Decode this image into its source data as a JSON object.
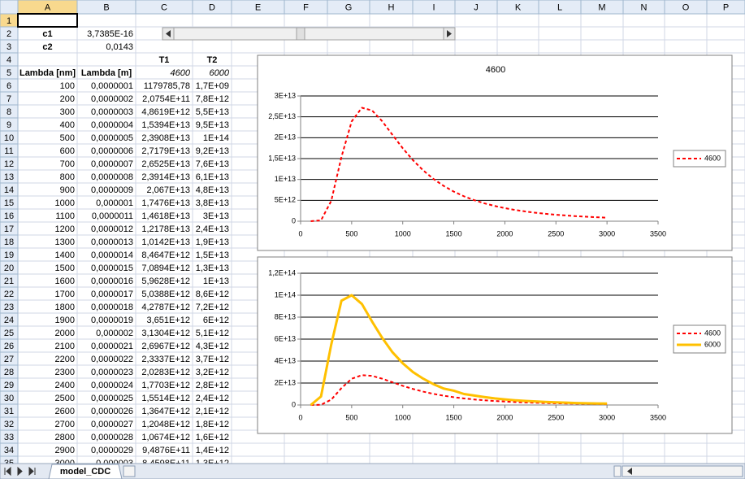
{
  "sheet": {
    "columns": [
      "A",
      "B",
      "C",
      "D",
      "E",
      "F",
      "G",
      "H",
      "I",
      "J",
      "K",
      "L",
      "M",
      "N",
      "O",
      "P"
    ],
    "row_numbers": [
      1,
      2,
      3,
      4,
      5,
      6,
      7,
      8,
      9,
      10,
      11,
      12,
      13,
      14,
      15,
      16,
      17,
      18,
      19,
      20,
      21,
      22,
      23,
      24,
      25,
      26,
      27,
      28,
      29,
      30,
      31,
      32,
      33,
      34,
      35
    ],
    "rows": [
      [
        null,
        null,
        null,
        null
      ],
      [
        "c1",
        "3,7385E-16",
        null,
        null
      ],
      [
        "c2",
        "0,0143",
        null,
        null
      ],
      [
        null,
        null,
        "T1",
        "T2"
      ],
      [
        "Lambda [nm]",
        "Lambda [m]",
        "4600",
        "6000"
      ],
      [
        100,
        "0,0000001",
        "1179785,78",
        "1,7E+09"
      ],
      [
        200,
        "0,0000002",
        "2,0754E+11",
        "7,8E+12"
      ],
      [
        300,
        "0,0000003",
        "4,8619E+12",
        "5,5E+13"
      ],
      [
        400,
        "0,0000004",
        "1,5394E+13",
        "9,5E+13"
      ],
      [
        500,
        "0,0000005",
        "2,3908E+13",
        "1E+14"
      ],
      [
        600,
        "0,0000006",
        "2,7179E+13",
        "9,2E+13"
      ],
      [
        700,
        "0,0000007",
        "2,6525E+13",
        "7,6E+13"
      ],
      [
        800,
        "0,0000008",
        "2,3914E+13",
        "6,1E+13"
      ],
      [
        900,
        "0,0000009",
        "2,067E+13",
        "4,8E+13"
      ],
      [
        1000,
        "0,000001",
        "1,7476E+13",
        "3,8E+13"
      ],
      [
        1100,
        "0,0000011",
        "1,4618E+13",
        "3E+13"
      ],
      [
        1200,
        "0,0000012",
        "1,2178E+13",
        "2,4E+13"
      ],
      [
        1300,
        "0,0000013",
        "1,0142E+13",
        "1,9E+13"
      ],
      [
        1400,
        "0,0000014",
        "8,4647E+12",
        "1,5E+13"
      ],
      [
        1500,
        "0,0000015",
        "7,0894E+12",
        "1,3E+13"
      ],
      [
        1600,
        "0,0000016",
        "5,9628E+12",
        "1E+13"
      ],
      [
        1700,
        "0,0000017",
        "5,0388E+12",
        "8,6E+12"
      ],
      [
        1800,
        "0,0000018",
        "4,2787E+12",
        "7,2E+12"
      ],
      [
        1900,
        "0,0000019",
        "3,651E+12",
        "6E+12"
      ],
      [
        2000,
        "0,000002",
        "3,1304E+12",
        "5,1E+12"
      ],
      [
        2100,
        "0,0000021",
        "2,6967E+12",
        "4,3E+12"
      ],
      [
        2200,
        "0,0000022",
        "2,3337E+12",
        "3,7E+12"
      ],
      [
        2300,
        "0,0000023",
        "2,0283E+12",
        "3,2E+12"
      ],
      [
        2400,
        "0,0000024",
        "1,7703E+12",
        "2,8E+12"
      ],
      [
        2500,
        "0,0000025",
        "1,5514E+12",
        "2,4E+12"
      ],
      [
        2600,
        "0,0000026",
        "1,3647E+12",
        "2,1E+12"
      ],
      [
        2700,
        "0,0000027",
        "1,2048E+12",
        "1,8E+12"
      ],
      [
        2800,
        "0,0000028",
        "1,0674E+12",
        "1,6E+12"
      ],
      [
        2900,
        "0,0000029",
        "9,4876E+11",
        "1,4E+12"
      ],
      [
        3000,
        "0,000003",
        "8,4598E+11",
        "1,3E+12"
      ]
    ],
    "tab": "model_CDC"
  },
  "chart_data": [
    {
      "type": "line",
      "title": "4600",
      "x": [
        100,
        200,
        300,
        400,
        500,
        600,
        700,
        800,
        900,
        1000,
        1100,
        1200,
        1300,
        1400,
        1500,
        1600,
        1700,
        1800,
        1900,
        2000,
        2100,
        2200,
        2300,
        2400,
        2500,
        2600,
        2700,
        2800,
        2900,
        3000
      ],
      "series": [
        {
          "name": "4600",
          "color": "#ff0000",
          "dashed": true,
          "values": [
            1179785.78,
            207540000000.0,
            4861900000000.0,
            15394000000000.0,
            23908000000000.0,
            27179000000000.0,
            26525000000000.0,
            23914000000000.0,
            20670000000000.0,
            17476000000000.0,
            14618000000000.0,
            12178000000000.0,
            10142000000000.0,
            8464700000000.0,
            7089400000000.0,
            5962800000000.0,
            5038800000000.0,
            4278700000000.0,
            3651000000000.0,
            3130400000000.0,
            2696700000000.0,
            2333700000000.0,
            2028300000000.0,
            1770300000000.0,
            1551400000000.0,
            1364700000000.0,
            1204800000000.0,
            1067400000000.0,
            948760000000.0,
            845980000000.0
          ]
        }
      ],
      "xlim": [
        0,
        3500
      ],
      "xticks": [
        0,
        500,
        1000,
        1500,
        2000,
        2500,
        3000,
        3500
      ],
      "ylim": [
        0,
        30000000000000.0
      ],
      "yticks": [
        0,
        {
          "value": 5000000000000.0,
          "label": "5E+12"
        },
        {
          "value": 10000000000000.0,
          "label": "1E+13"
        },
        {
          "value": 15000000000000.0,
          "label": "1,5E+13"
        },
        {
          "value": 20000000000000.0,
          "label": "2E+13"
        },
        {
          "value": 25000000000000.0,
          "label": "2,5E+13"
        },
        {
          "value": 30000000000000.0,
          "label": "3E+13"
        }
      ],
      "grid": true,
      "legend": "right"
    },
    {
      "type": "line",
      "x": [
        100,
        200,
        300,
        400,
        500,
        600,
        700,
        800,
        900,
        1000,
        1100,
        1200,
        1300,
        1400,
        1500,
        1600,
        1700,
        1800,
        1900,
        2000,
        2100,
        2200,
        2300,
        2400,
        2500,
        2600,
        2700,
        2800,
        2900,
        3000
      ],
      "series": [
        {
          "name": "4600",
          "color": "#ff0000",
          "dashed": true,
          "values": [
            1179785.78,
            207540000000.0,
            4861900000000.0,
            15394000000000.0,
            23908000000000.0,
            27179000000000.0,
            26525000000000.0,
            23914000000000.0,
            20670000000000.0,
            17476000000000.0,
            14618000000000.0,
            12178000000000.0,
            10142000000000.0,
            8464700000000.0,
            7089400000000.0,
            5962800000000.0,
            5038800000000.0,
            4278700000000.0,
            3651000000000.0,
            3130400000000.0,
            2696700000000.0,
            2333700000000.0,
            2028300000000.0,
            1770300000000.0,
            1551400000000.0,
            1364700000000.0,
            1204800000000.0,
            1067400000000.0,
            948760000000.0,
            845980000000.0
          ]
        },
        {
          "name": "6000",
          "color": "#ffc000",
          "dashed": false,
          "values": [
            1700000000.0,
            7800000000000.0,
            55000000000000.0,
            95000000000000.0,
            100000000000000.0,
            92000000000000.0,
            76000000000000.0,
            61000000000000.0,
            48000000000000.0,
            38000000000000.0,
            30000000000000.0,
            24000000000000.0,
            19000000000000.0,
            15000000000000.0,
            13000000000000.0,
            10000000000000.0,
            8600000000000.0,
            7200000000000.0,
            6000000000000.0,
            5100000000000.0,
            4300000000000.0,
            3700000000000.0,
            3200000000000.0,
            2800000000000.0,
            2400000000000.0,
            2100000000000.0,
            1800000000000.0,
            1600000000000.0,
            1400000000000.0,
            1300000000000.0
          ]
        }
      ],
      "xlim": [
        0,
        3500
      ],
      "xticks": [
        0,
        500,
        1000,
        1500,
        2000,
        2500,
        3000,
        3500
      ],
      "ylim": [
        0,
        120000000000000.0
      ],
      "yticks": [
        0,
        {
          "value": 20000000000000.0,
          "label": "2E+13"
        },
        {
          "value": 40000000000000.0,
          "label": "4E+13"
        },
        {
          "value": 60000000000000.0,
          "label": "6E+13"
        },
        {
          "value": 80000000000000.0,
          "label": "8E+13"
        },
        {
          "value": 100000000000000.0,
          "label": "1E+14"
        },
        {
          "value": 120000000000000.0,
          "label": "1,2E+14"
        }
      ],
      "grid": true,
      "legend": "right"
    }
  ]
}
